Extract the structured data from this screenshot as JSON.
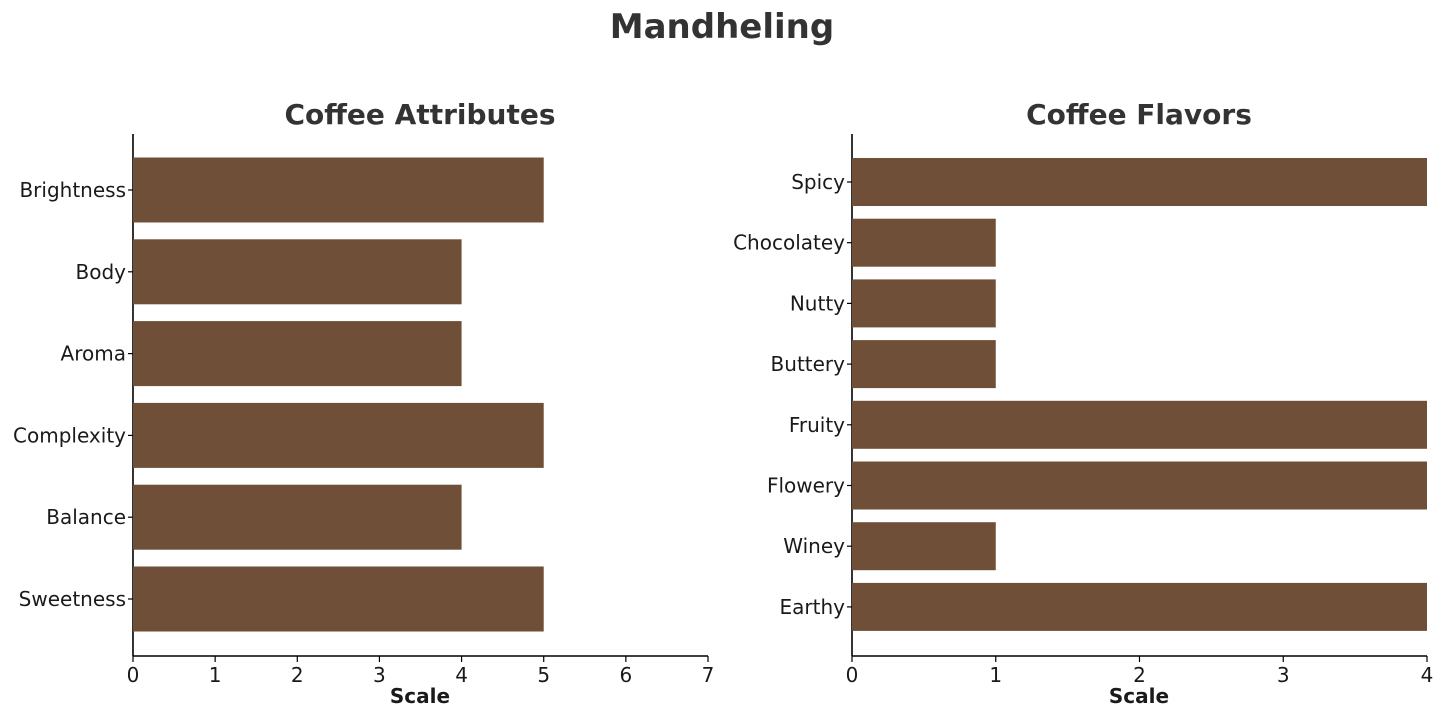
{
  "figure_title": "Mandheling",
  "chart_data": [
    {
      "type": "bar",
      "orientation": "horizontal",
      "title": "Coffee Attributes",
      "xlabel": "Scale",
      "ylabel": "",
      "categories": [
        "Brightness",
        "Body",
        "Aroma",
        "Complexity",
        "Balance",
        "Sweetness"
      ],
      "values": [
        5,
        4,
        4,
        5,
        4,
        5
      ],
      "xlim": [
        0,
        7
      ],
      "xticks": [
        0,
        1,
        2,
        3,
        4,
        5,
        6,
        7
      ],
      "grid": false,
      "legend": "none",
      "bar_color": "#6f4f37"
    },
    {
      "type": "bar",
      "orientation": "horizontal",
      "title": "Coffee Flavors",
      "xlabel": "Scale",
      "ylabel": "",
      "categories": [
        "Spicy",
        "Chocolatey",
        "Nutty",
        "Buttery",
        "Fruity",
        "Flowery",
        "Winey",
        "Earthy"
      ],
      "values": [
        4,
        1,
        1,
        1,
        4,
        4,
        1,
        4
      ],
      "xlim": [
        0,
        4
      ],
      "xticks": [
        0,
        1,
        2,
        3,
        4
      ],
      "grid": false,
      "legend": "none",
      "bar_color": "#6f4f37"
    }
  ]
}
